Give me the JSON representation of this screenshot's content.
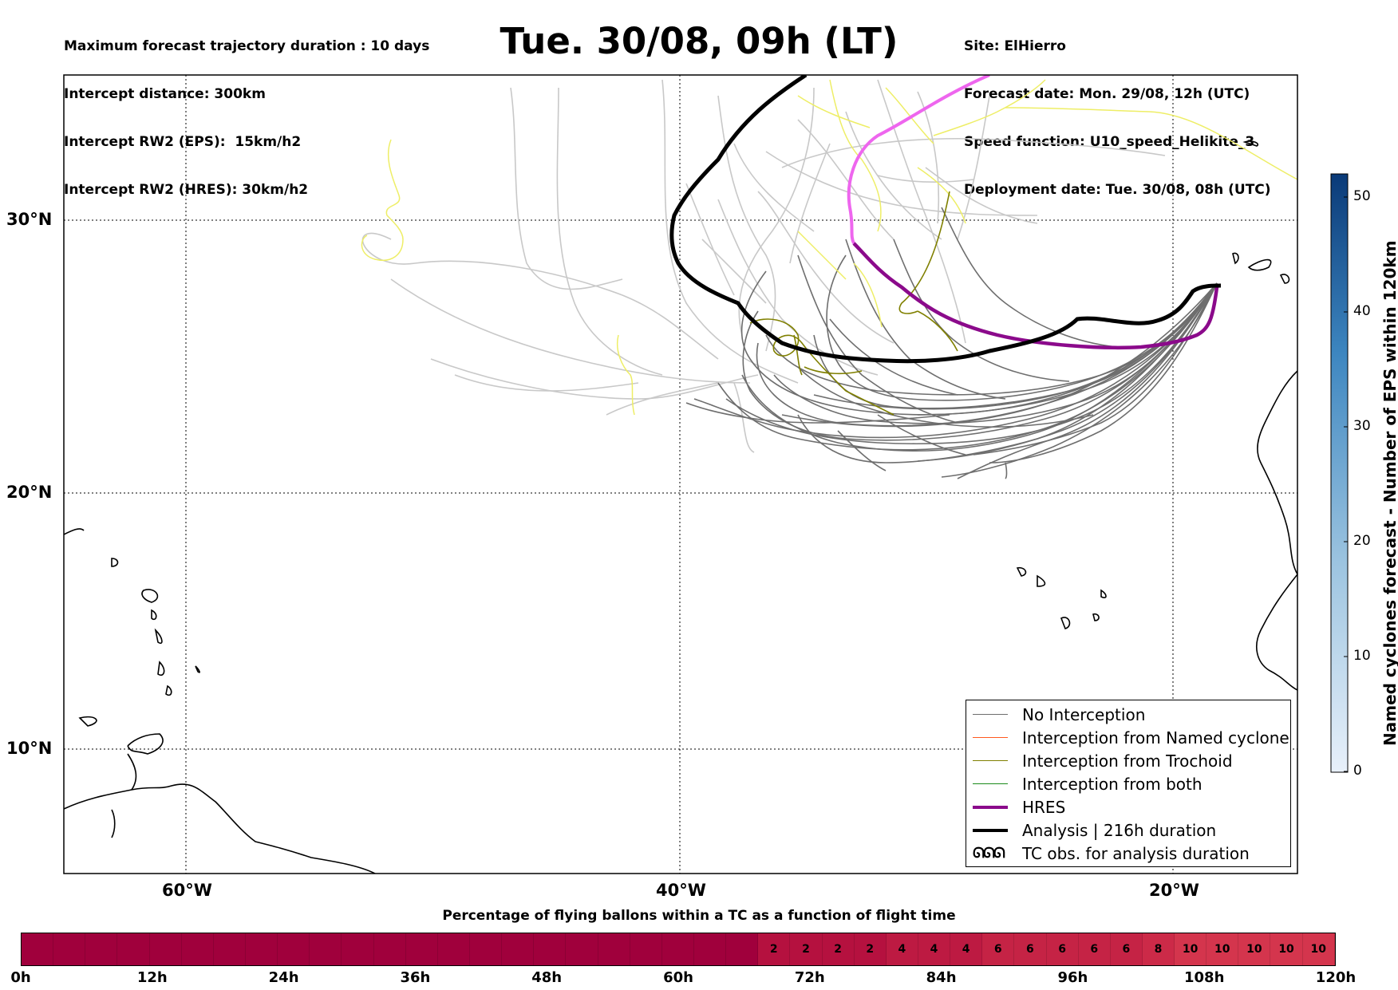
{
  "header_left": [
    "Maximum forecast trajectory duration : 10 days",
    "Intercept distance: 300km",
    "Intercept RW2 (EPS):  15km/h2",
    "Intercept RW2 (HRES): 30km/h2"
  ],
  "title": "Tue. 30/08, 09h (LT)",
  "header_right": [
    "Site: ElHierro",
    "Forecast date: Mon. 29/08, 12h (UTC)",
    "Speed function: U10_speed_Helikite_3",
    "Deployment date: Tue. 30/08, 08h (UTC)"
  ],
  "map": {
    "lat_labels": [
      "30°N",
      "20°N",
      "10°N"
    ],
    "lon_labels": [
      "60°W",
      "40°W",
      "20°W"
    ],
    "colors": {
      "no_interception": "#6e6e6e",
      "ensemble_light": "#c8c8c8",
      "named_cyclone": "#ff5a1f",
      "trochoid": "#808000",
      "both": "#1a8a1a",
      "hres": "#8b0a8b",
      "hres_early": "#ee66ee",
      "analysis": "#000000",
      "yellow_track": "#eeee66"
    }
  },
  "legend": {
    "items": [
      "No Interception",
      "Interception from Named cyclone",
      "Interception from Trochoid",
      "Interception from both",
      "HRES",
      "Analysis | 216h duration",
      "TC obs. for analysis duration"
    ],
    "tc_symbol": "ᘏᘏᘏ"
  },
  "colorbar": {
    "label": "Named cyclones forecast - Number of EPS within 120km",
    "ticks": [
      "0",
      "10",
      "20",
      "30",
      "40",
      "50"
    ],
    "max": 52
  },
  "percentage_bar": {
    "title": "Percentage of flying ballons within a TC as a function of flight time",
    "time_labels": [
      "0h",
      "12h",
      "24h",
      "36h",
      "48h",
      "60h",
      "72h",
      "84h",
      "96h",
      "108h",
      "120h"
    ],
    "cell_values": [
      "",
      "",
      "",
      "",
      "",
      "",
      "",
      "",
      "",
      "",
      "",
      "",
      "",
      "",
      "",
      "",
      "",
      "",
      "",
      "",
      "",
      "",
      "",
      "2",
      "2",
      "2",
      "2",
      "4",
      "4",
      "4",
      "6",
      "6",
      "6",
      "6",
      "6",
      "8",
      "10",
      "10",
      "10",
      "10",
      "10"
    ],
    "colors": {
      "0": "#a0003c",
      "2": "#b5113f",
      "4": "#bd1a42",
      "6": "#c52345",
      "8": "#cc2a48",
      "10": "#d4354d"
    }
  }
}
